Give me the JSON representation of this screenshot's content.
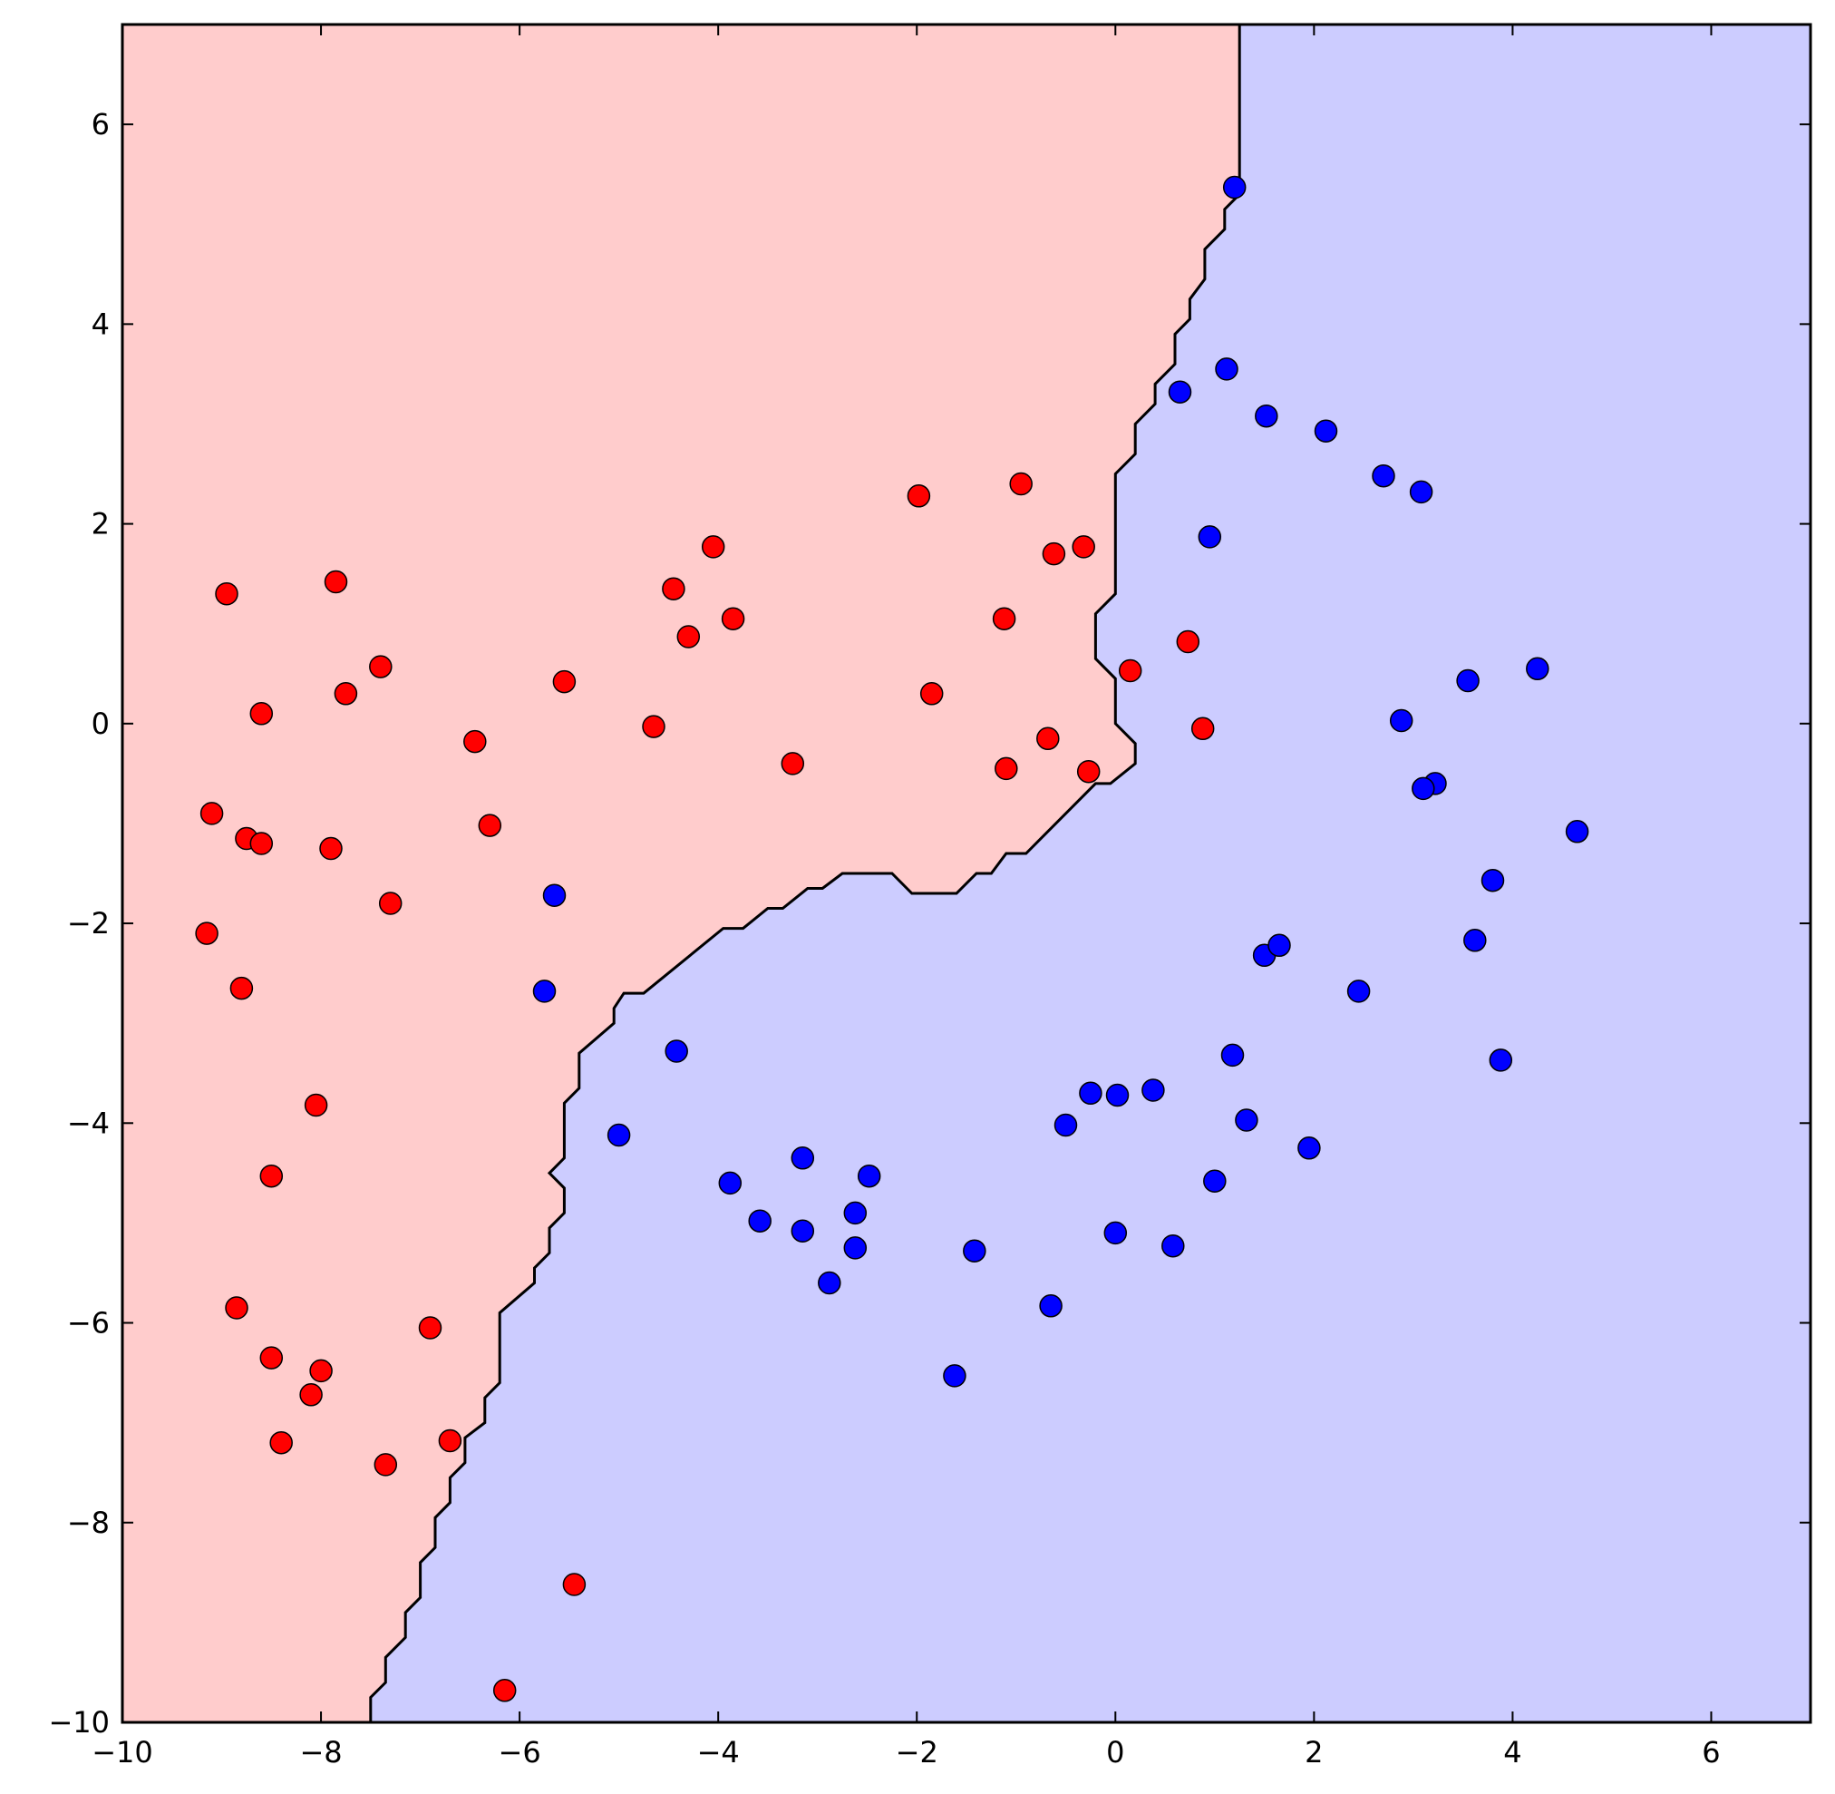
{
  "chart_data": {
    "type": "scatter",
    "title": "",
    "xlabel": "",
    "ylabel": "",
    "xlim": [
      -10,
      7
    ],
    "ylim": [
      -10,
      7
    ],
    "xticks": [
      -10,
      -8,
      -6,
      -4,
      -2,
      0,
      2,
      4,
      6
    ],
    "yticks": [
      -10,
      -8,
      -6,
      -4,
      -2,
      0,
      2,
      4,
      6
    ],
    "xtick_labels": [
      "−10",
      "−8",
      "−6",
      "−4",
      "−2",
      "0",
      "2",
      "4",
      "6"
    ],
    "ytick_labels": [
      "−10",
      "−8",
      "−6",
      "−4",
      "−2",
      "0",
      "2",
      "4",
      "6"
    ],
    "grid": false,
    "legend": "none",
    "colors": {
      "class_a_region": "#ffcccc",
      "class_b_region": "#ccccff",
      "class_a_point": "#ff0000",
      "class_b_point": "#0000ff",
      "boundary": "#000000"
    },
    "decision_boundary": [
      [
        1.25,
        7.0
      ],
      [
        1.25,
        5.3
      ],
      [
        1.1,
        5.15
      ],
      [
        1.1,
        4.95
      ],
      [
        0.9,
        4.75
      ],
      [
        0.9,
        4.45
      ],
      [
        0.75,
        4.25
      ],
      [
        0.75,
        4.05
      ],
      [
        0.6,
        3.9
      ],
      [
        0.6,
        3.6
      ],
      [
        0.4,
        3.4
      ],
      [
        0.4,
        3.2
      ],
      [
        0.2,
        3.0
      ],
      [
        0.2,
        2.7
      ],
      [
        0.0,
        2.5
      ],
      [
        0.0,
        1.3
      ],
      [
        -0.2,
        1.1
      ],
      [
        -0.2,
        0.65
      ],
      [
        0.0,
        0.45
      ],
      [
        0.0,
        0.0
      ],
      [
        0.2,
        -0.2
      ],
      [
        0.2,
        -0.4
      ],
      [
        -0.05,
        -0.6
      ],
      [
        -0.2,
        -0.6
      ],
      [
        -0.9,
        -1.3
      ],
      [
        -1.1,
        -1.3
      ],
      [
        -1.25,
        -1.5
      ],
      [
        -1.4,
        -1.5
      ],
      [
        -1.6,
        -1.7
      ],
      [
        -2.05,
        -1.7
      ],
      [
        -2.25,
        -1.5
      ],
      [
        -2.75,
        -1.5
      ],
      [
        -2.95,
        -1.65
      ],
      [
        -3.1,
        -1.65
      ],
      [
        -3.35,
        -1.85
      ],
      [
        -3.5,
        -1.85
      ],
      [
        -3.75,
        -2.05
      ],
      [
        -3.95,
        -2.05
      ],
      [
        -4.75,
        -2.7
      ],
      [
        -4.95,
        -2.7
      ],
      [
        -5.05,
        -2.85
      ],
      [
        -5.05,
        -3.0
      ],
      [
        -5.4,
        -3.3
      ],
      [
        -5.4,
        -3.65
      ],
      [
        -5.55,
        -3.8
      ],
      [
        -5.55,
        -4.35
      ],
      [
        -5.7,
        -4.5
      ],
      [
        -5.55,
        -4.65
      ],
      [
        -5.55,
        -4.9
      ],
      [
        -5.7,
        -5.05
      ],
      [
        -5.7,
        -5.3
      ],
      [
        -5.85,
        -5.45
      ],
      [
        -5.85,
        -5.6
      ],
      [
        -6.2,
        -5.9
      ],
      [
        -6.2,
        -6.6
      ],
      [
        -6.35,
        -6.75
      ],
      [
        -6.35,
        -7.0
      ],
      [
        -6.55,
        -7.15
      ],
      [
        -6.55,
        -7.4
      ],
      [
        -6.7,
        -7.55
      ],
      [
        -6.7,
        -7.8
      ],
      [
        -6.85,
        -7.95
      ],
      [
        -6.85,
        -8.25
      ],
      [
        -7.0,
        -8.4
      ],
      [
        -7.0,
        -8.75
      ],
      [
        -7.15,
        -8.9
      ],
      [
        -7.15,
        -9.15
      ],
      [
        -7.35,
        -9.35
      ],
      [
        -7.35,
        -9.6
      ],
      [
        -7.5,
        -9.75
      ],
      [
        -7.5,
        -10.0
      ]
    ],
    "series": [
      {
        "color": "#ff0000",
        "points": [
          [
            -8.95,
            1.3
          ],
          [
            -7.85,
            1.42
          ],
          [
            -7.4,
            0.57
          ],
          [
            -7.75,
            0.3
          ],
          [
            -8.6,
            0.1
          ],
          [
            -9.1,
            -0.9
          ],
          [
            -8.75,
            -1.15
          ],
          [
            -8.6,
            -1.2
          ],
          [
            -7.9,
            -1.25
          ],
          [
            -7.3,
            -1.8
          ],
          [
            -9.15,
            -2.1
          ],
          [
            -8.8,
            -2.65
          ],
          [
            -6.45,
            -0.18
          ],
          [
            -6.3,
            -1.02
          ],
          [
            -5.55,
            0.42
          ],
          [
            -4.65,
            -0.03
          ],
          [
            -4.3,
            0.87
          ],
          [
            -4.45,
            1.35
          ],
          [
            -4.05,
            1.77
          ],
          [
            -3.85,
            1.05
          ],
          [
            -3.25,
            -0.4
          ],
          [
            -1.98,
            2.28
          ],
          [
            -1.85,
            0.3
          ],
          [
            -0.95,
            2.4
          ],
          [
            -1.12,
            1.05
          ],
          [
            -0.62,
            1.7
          ],
          [
            -0.32,
            1.77
          ],
          [
            -1.1,
            -0.45
          ],
          [
            -0.68,
            -0.15
          ],
          [
            -0.27,
            -0.48
          ],
          [
            0.15,
            0.53
          ],
          [
            0.73,
            0.82
          ],
          [
            0.88,
            -0.05
          ],
          [
            -8.05,
            -3.82
          ],
          [
            -8.5,
            -4.53
          ],
          [
            -8.85,
            -5.85
          ],
          [
            -8.5,
            -6.35
          ],
          [
            -8.0,
            -6.48
          ],
          [
            -8.1,
            -6.72
          ],
          [
            -8.4,
            -7.2
          ],
          [
            -7.35,
            -7.42
          ],
          [
            -6.7,
            -7.18
          ],
          [
            -6.9,
            -6.05
          ],
          [
            -5.45,
            -8.62
          ],
          [
            -6.15,
            -9.68
          ]
        ]
      },
      {
        "color": "#0000ff",
        "points": [
          [
            1.2,
            5.37
          ],
          [
            0.65,
            3.32
          ],
          [
            1.12,
            3.55
          ],
          [
            1.52,
            3.08
          ],
          [
            2.12,
            2.93
          ],
          [
            2.7,
            2.48
          ],
          [
            3.08,
            2.32
          ],
          [
            0.95,
            1.87
          ],
          [
            3.55,
            0.43
          ],
          [
            4.25,
            0.55
          ],
          [
            2.88,
            0.03
          ],
          [
            3.22,
            -0.6
          ],
          [
            3.1,
            -0.65
          ],
          [
            4.65,
            -1.08
          ],
          [
            3.8,
            -1.57
          ],
          [
            3.62,
            -2.17
          ],
          [
            1.5,
            -2.32
          ],
          [
            1.65,
            -2.22
          ],
          [
            2.45,
            -2.68
          ],
          [
            3.88,
            -3.37
          ],
          [
            1.18,
            -3.32
          ],
          [
            1.32,
            -3.97
          ],
          [
            1.95,
            -4.25
          ],
          [
            1.0,
            -4.58
          ],
          [
            0.38,
            -3.67
          ],
          [
            0.02,
            -3.72
          ],
          [
            -0.25,
            -3.7
          ],
          [
            -0.5,
            -4.02
          ],
          [
            0.0,
            -5.1
          ],
          [
            0.58,
            -5.23
          ],
          [
            -0.65,
            -5.83
          ],
          [
            -1.42,
            -5.28
          ],
          [
            -1.62,
            -6.53
          ],
          [
            -2.48,
            -4.53
          ],
          [
            -2.62,
            -4.9
          ],
          [
            -2.62,
            -5.25
          ],
          [
            -2.88,
            -5.6
          ],
          [
            -3.15,
            -4.35
          ],
          [
            -3.15,
            -5.08
          ],
          [
            -3.58,
            -4.98
          ],
          [
            -3.88,
            -4.6
          ],
          [
            -5.0,
            -4.12
          ],
          [
            -4.42,
            -3.28
          ],
          [
            -5.65,
            -1.72
          ],
          [
            -5.75,
            -2.68
          ]
        ]
      }
    ]
  }
}
